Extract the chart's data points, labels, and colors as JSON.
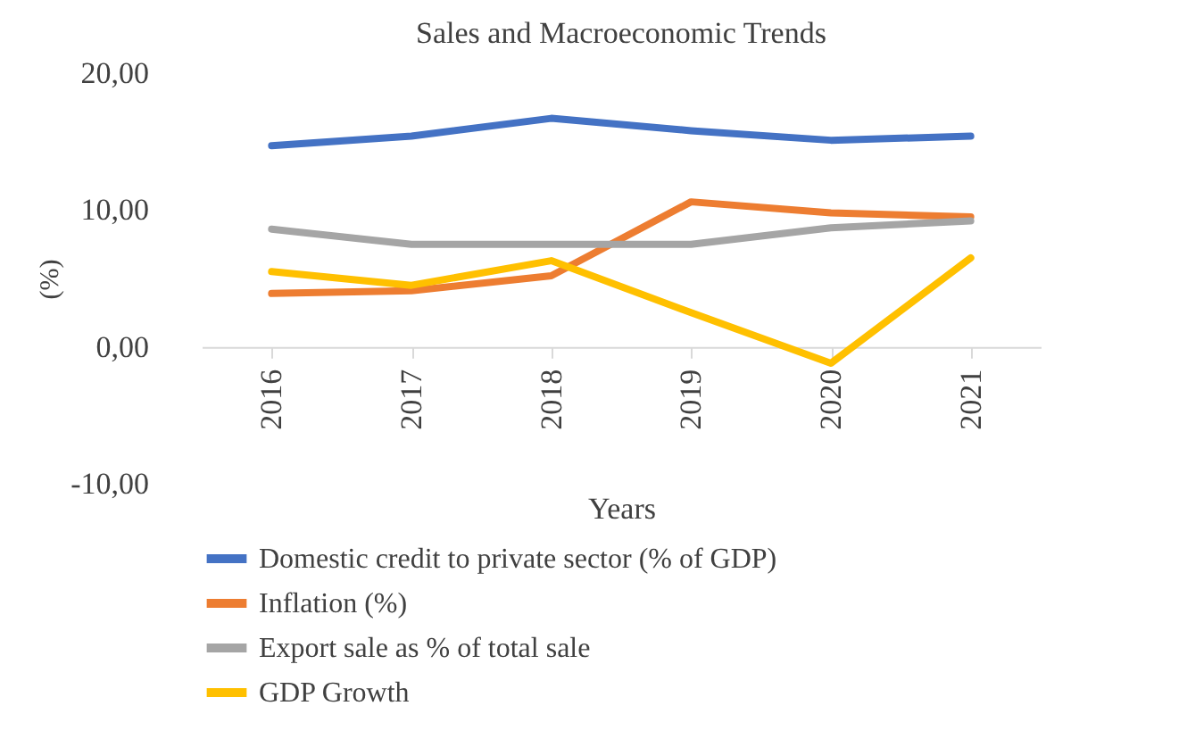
{
  "chart_data": {
    "type": "line",
    "title": "Sales and Macroeconomic Trends",
    "xlabel": "Years",
    "ylabel": "(%)",
    "categories": [
      "2016",
      "2017",
      "2018",
      "2019",
      "2020",
      "2021"
    ],
    "series": [
      {
        "name": "Domestic credit to private sector (% of GDP)",
        "color": "#4472c4",
        "values": [
          14.7,
          15.4,
          16.7,
          15.8,
          15.1,
          15.4
        ]
      },
      {
        "name": "Inflation (%)",
        "color": "#ed7d31",
        "values": [
          3.9,
          4.1,
          5.2,
          10.6,
          9.8,
          9.5
        ]
      },
      {
        "name": "Export sale as % of total sale",
        "color": "#a5a5a5",
        "values": [
          8.6,
          7.5,
          7.5,
          7.5,
          8.7,
          9.2
        ]
      },
      {
        "name": "GDP Growth",
        "color": "#ffc000",
        "values": [
          5.5,
          4.5,
          6.3,
          2.5,
          -1.2,
          6.5
        ]
      }
    ],
    "ylim": [
      -10,
      20
    ],
    "yticks": [
      {
        "value": -10,
        "label": "-10,00"
      },
      {
        "value": 0,
        "label": "0,00"
      },
      {
        "value": 10,
        "label": "10,00"
      },
      {
        "value": 20,
        "label": "20,00"
      }
    ],
    "grid": false,
    "legend": "bottom",
    "marker": "none",
    "line_style": "solid"
  }
}
